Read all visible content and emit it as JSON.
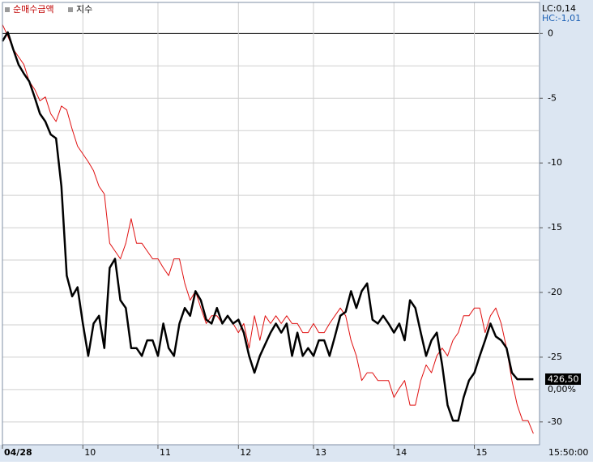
{
  "chart_data": {
    "type": "line",
    "categories": [
      "04/28",
      null,
      null,
      null,
      null,
      null,
      null,
      null,
      null,
      null,
      null,
      null,
      null,
      null,
      null,
      "10",
      null,
      null,
      null,
      null,
      null,
      null,
      null,
      null,
      null,
      null,
      null,
      null,
      null,
      "11",
      null,
      null,
      null,
      null,
      null,
      null,
      null,
      null,
      null,
      null,
      null,
      null,
      null,
      null,
      "12",
      null,
      null,
      null,
      null,
      null,
      null,
      null,
      null,
      null,
      null,
      null,
      null,
      null,
      "13",
      null,
      null,
      null,
      null,
      null,
      null,
      null,
      null,
      null,
      null,
      null,
      null,
      null,
      null,
      "14",
      null,
      null,
      null,
      null,
      null,
      null,
      null,
      null,
      null,
      null,
      null,
      null,
      null,
      null,
      "15",
      null,
      null,
      null,
      null,
      null,
      null,
      null,
      null,
      null,
      null,
      null
    ],
    "series": [
      {
        "name": "순매수금액",
        "color": "#e01010",
        "width": 1,
        "values": [
          0.7,
          -0.2,
          -1.2,
          -1.8,
          -2.4,
          -3.7,
          -4.3,
          -5.2,
          -4.9,
          -6.2,
          -6.8,
          -5.6,
          -5.9,
          -7.4,
          -8.7,
          -9.3,
          -9.9,
          -10.6,
          -11.8,
          -12.4,
          -16.2,
          -16.8,
          -17.4,
          -16.2,
          -14.3,
          -16.2,
          -16.2,
          -16.8,
          -17.4,
          -17.4,
          -18.1,
          -18.7,
          -17.4,
          -17.4,
          -19.3,
          -20.6,
          -19.9,
          -21.2,
          -22.4,
          -21.8,
          -21.8,
          -22.4,
          -21.8,
          -22.4,
          -23.1,
          -22.4,
          -24.3,
          -21.8,
          -23.7,
          -21.8,
          -22.4,
          -21.8,
          -22.4,
          -21.8,
          -22.4,
          -22.4,
          -23.1,
          -23.1,
          -22.4,
          -23.1,
          -23.1,
          -22.4,
          -21.8,
          -21.2,
          -21.8,
          -23.7,
          -24.9,
          -26.8,
          -26.2,
          -26.2,
          -26.8,
          -26.8,
          -26.8,
          -28.1,
          -27.4,
          -26.8,
          -28.7,
          -28.7,
          -26.8,
          -25.6,
          -26.2,
          -24.9,
          -24.3,
          -24.9,
          -23.7,
          -23.1,
          -21.8,
          -21.8,
          -21.2,
          -21.2,
          -23.1,
          -21.8,
          -21.2,
          -22.4,
          -24.3,
          -26.8,
          -28.7,
          -29.9,
          -29.9,
          -30.9
        ]
      },
      {
        "name": "지수",
        "color": "#000000",
        "width": 2.5,
        "values": [
          -0.6,
          0.1,
          -1.2,
          -2.4,
          -3.1,
          -3.7,
          -4.9,
          -6.2,
          -6.8,
          -7.8,
          -8.1,
          -11.8,
          -18.7,
          -20.3,
          -19.6,
          -22.4,
          -24.9,
          -22.4,
          -21.8,
          -24.3,
          -18.1,
          -17.4,
          -20.6,
          -21.2,
          -24.3,
          -24.3,
          -24.9,
          -23.7,
          -23.7,
          -24.9,
          -22.4,
          -24.3,
          -24.9,
          -22.4,
          -21.2,
          -21.8,
          -19.9,
          -20.6,
          -22.1,
          -22.4,
          -21.2,
          -22.4,
          -21.8,
          -22.4,
          -22.1,
          -23.1,
          -24.9,
          -26.2,
          -24.9,
          -24.0,
          -23.1,
          -22.4,
          -23.1,
          -22.4,
          -24.9,
          -23.1,
          -24.9,
          -24.3,
          -24.9,
          -23.7,
          -23.7,
          -24.9,
          -23.4,
          -21.8,
          -21.5,
          -19.9,
          -21.2,
          -19.9,
          -19.3,
          -22.1,
          -22.4,
          -21.8,
          -22.4,
          -23.1,
          -22.4,
          -23.7,
          -20.6,
          -21.2,
          -23.1,
          -24.9,
          -23.7,
          -23.1,
          -25.6,
          -28.7,
          -29.9,
          -29.9,
          -28.1,
          -26.8,
          -26.2,
          -24.9,
          -23.7,
          -22.4,
          -23.4,
          -23.7,
          -24.3,
          -26.2,
          -26.7,
          -26.7,
          -26.7,
          -26.7
        ]
      }
    ],
    "ylim": [
      2.4,
      -31.7
    ],
    "yticks": [
      0,
      -5,
      -10,
      -15,
      -20,
      -25,
      -30
    ],
    "yminor": [
      -2.5,
      -7.5,
      -12.5,
      -17.5,
      -22.5,
      -27.5
    ],
    "grid": true,
    "zero_line": true,
    "annotations": {
      "lc": "LC:0,14",
      "hc": "HC:-1,01",
      "last_price": "426,50",
      "change": "0,00%",
      "time": "15:50:00"
    }
  }
}
